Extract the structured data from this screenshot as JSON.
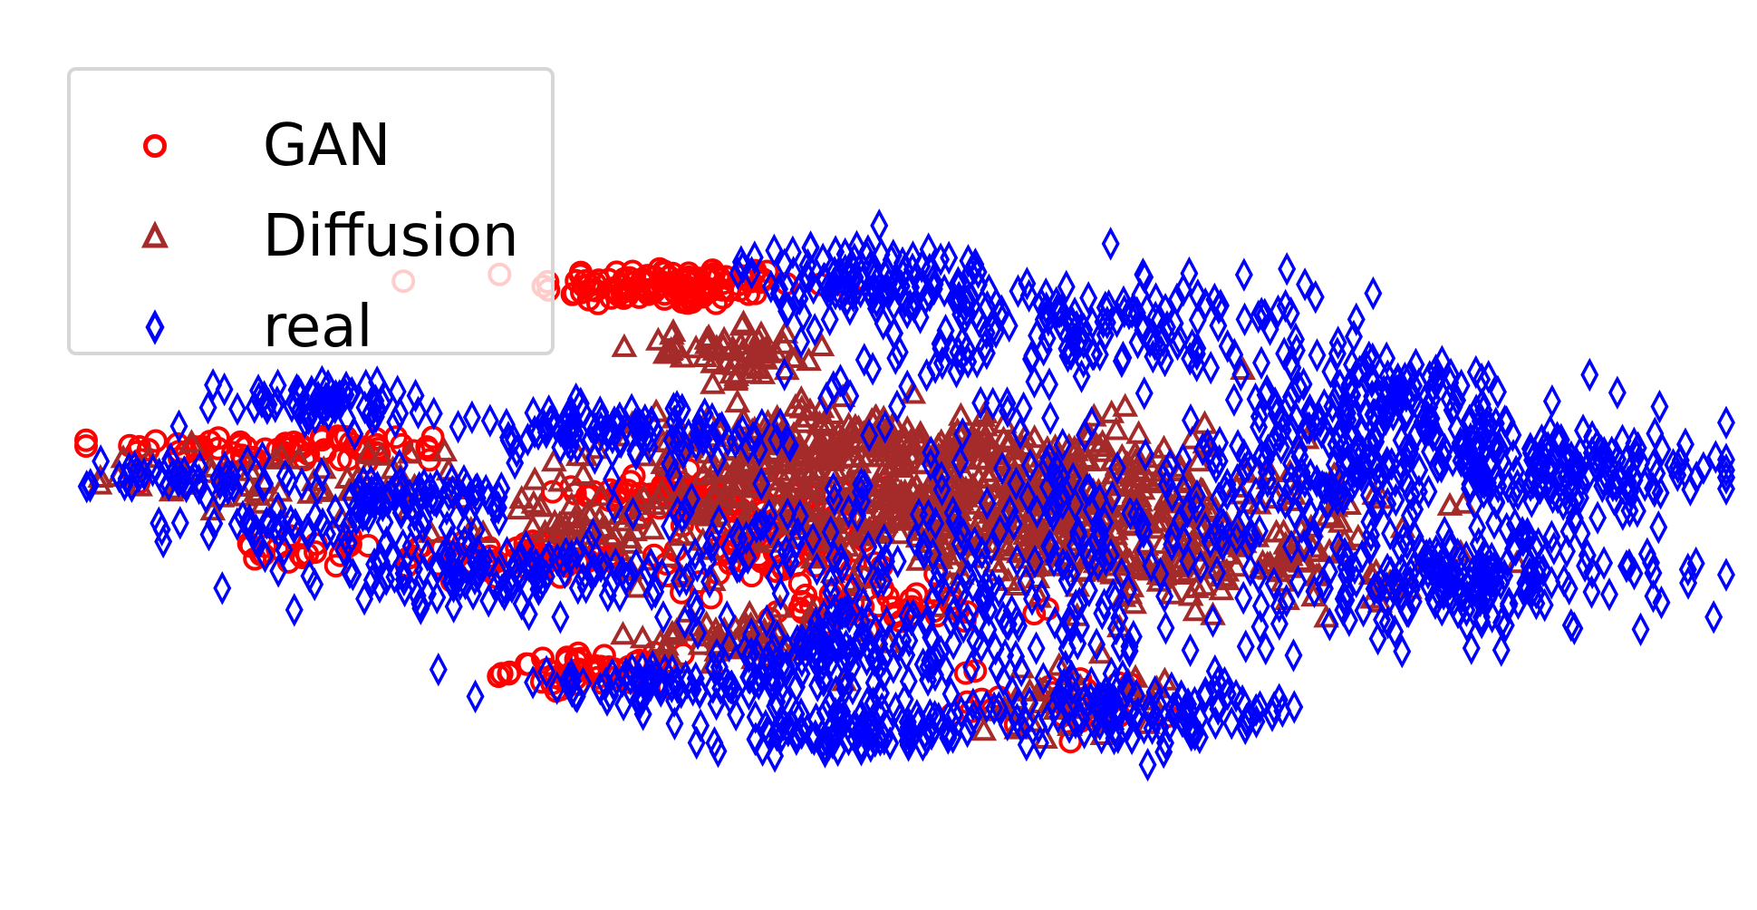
{
  "chart_data": {
    "type": "scatter",
    "title": "",
    "xlabel": "",
    "ylabel": "",
    "axes_visible": false,
    "grid": false,
    "legend_placement": "top-left",
    "xlim": [
      0,
      100
    ],
    "ylim": [
      0,
      100
    ],
    "series": [
      {
        "name": "GAN",
        "marker": "circle-open",
        "color": "#ff0000",
        "clusters": [
          {
            "cx": 35.5,
            "cy": 84.0,
            "sx": 4.0,
            "sy": 1.6,
            "n": 120
          },
          {
            "cx": 12.5,
            "cy": 58.0,
            "sx": 6.0,
            "sy": 1.3,
            "n": 70
          },
          {
            "cx": 27.0,
            "cy": 40.5,
            "sx": 3.0,
            "sy": 1.6,
            "n": 60
          },
          {
            "cx": 36.0,
            "cy": 51.0,
            "sx": 3.0,
            "sy": 1.8,
            "n": 70
          },
          {
            "cx": 42.0,
            "cy": 43.0,
            "sx": 3.5,
            "sy": 4.5,
            "n": 100
          },
          {
            "cx": 31.0,
            "cy": 22.5,
            "sx": 2.5,
            "sy": 1.3,
            "n": 50
          },
          {
            "cx": 49.0,
            "cy": 32.0,
            "sx": 5.0,
            "sy": 1.8,
            "n": 40
          },
          {
            "cx": 60.0,
            "cy": 18.0,
            "sx": 3.5,
            "sy": 2.5,
            "n": 30
          },
          {
            "cx": 14.0,
            "cy": 41.5,
            "sx": 3.0,
            "sy": 1.2,
            "n": 25
          }
        ]
      },
      {
        "name": "Diffusion",
        "marker": "triangle-open",
        "color": "#a52a2a",
        "clusters": [
          {
            "cx": 54.0,
            "cy": 50.0,
            "sx": 10.0,
            "sy": 6.0,
            "n": 650
          },
          {
            "cx": 45.0,
            "cy": 59.0,
            "sx": 5.0,
            "sy": 3.0,
            "n": 150
          },
          {
            "cx": 39.5,
            "cy": 73.0,
            "sx": 3.0,
            "sy": 2.0,
            "n": 60
          },
          {
            "cx": 40.0,
            "cy": 28.0,
            "sx": 3.0,
            "sy": 2.5,
            "n": 60
          },
          {
            "cx": 70.0,
            "cy": 40.0,
            "sx": 6.0,
            "sy": 4.0,
            "n": 120
          },
          {
            "cx": 12.0,
            "cy": 53.0,
            "sx": 6.0,
            "sy": 2.5,
            "n": 60
          },
          {
            "cx": 60.0,
            "cy": 18.0,
            "sx": 3.0,
            "sy": 3.0,
            "n": 40
          },
          {
            "cx": 30.0,
            "cy": 45.0,
            "sx": 3.0,
            "sy": 2.0,
            "n": 30
          }
        ]
      },
      {
        "name": "real",
        "marker": "diamond-open",
        "color": "#0000ff",
        "clusters": [
          {
            "cx": 48.0,
            "cy": 85.0,
            "sx": 4.0,
            "sy": 3.0,
            "n": 120
          },
          {
            "cx": 57.0,
            "cy": 76.0,
            "sx": 3.0,
            "sy": 6.0,
            "n": 60
          },
          {
            "cx": 67.0,
            "cy": 77.0,
            "sx": 4.0,
            "sy": 5.0,
            "n": 80
          },
          {
            "cx": 79.5,
            "cy": 64.0,
            "sx": 5.0,
            "sy": 5.0,
            "n": 180
          },
          {
            "cx": 88.0,
            "cy": 54.5,
            "sx": 6.0,
            "sy": 3.5,
            "n": 140
          },
          {
            "cx": 84.0,
            "cy": 37.0,
            "sx": 6.0,
            "sy": 4.5,
            "n": 200
          },
          {
            "cx": 66.0,
            "cy": 46.0,
            "sx": 9.0,
            "sy": 8.0,
            "n": 120
          },
          {
            "cx": 54.0,
            "cy": 30.0,
            "sx": 8.0,
            "sy": 7.0,
            "n": 120
          },
          {
            "cx": 45.0,
            "cy": 25.0,
            "sx": 3.0,
            "sy": 2.5,
            "n": 80
          },
          {
            "cx": 35.0,
            "cy": 20.0,
            "sx": 4.5,
            "sy": 1.6,
            "n": 90
          },
          {
            "cx": 46.5,
            "cy": 12.5,
            "sx": 4.0,
            "sy": 1.6,
            "n": 100
          },
          {
            "cx": 63.5,
            "cy": 16.0,
            "sx": 6.0,
            "sy": 2.5,
            "n": 130
          },
          {
            "cx": 25.0,
            "cy": 38.0,
            "sx": 5.0,
            "sy": 2.5,
            "n": 130
          },
          {
            "cx": 20.0,
            "cy": 50.0,
            "sx": 3.0,
            "sy": 2.0,
            "n": 70
          },
          {
            "cx": 12.0,
            "cy": 45.5,
            "sx": 3.0,
            "sy": 1.5,
            "n": 40
          },
          {
            "cx": 14.0,
            "cy": 65.5,
            "sx": 3.5,
            "sy": 1.6,
            "n": 70
          },
          {
            "cx": 6.5,
            "cy": 53.5,
            "sx": 3.0,
            "sy": 1.8,
            "n": 50
          },
          {
            "cx": 30.0,
            "cy": 61.0,
            "sx": 3.0,
            "sy": 2.0,
            "n": 60
          },
          {
            "cx": 37.0,
            "cy": 60.0,
            "sx": 3.5,
            "sy": 2.5,
            "n": 50
          },
          {
            "cx": 41.0,
            "cy": 42.0,
            "sx": 4.0,
            "sy": 6.0,
            "n": 60
          },
          {
            "cx": 56.0,
            "cy": 48.0,
            "sx": 6.0,
            "sy": 5.0,
            "n": 40
          },
          {
            "cx": 50.0,
            "cy": 70.0,
            "sx": 6.0,
            "sy": 5.0,
            "n": 30
          },
          {
            "cx": 75.0,
            "cy": 52.0,
            "sx": 4.0,
            "sy": 5.0,
            "n": 40
          },
          {
            "cx": 94.0,
            "cy": 55.0,
            "sx": 3.0,
            "sy": 3.0,
            "n": 30
          }
        ]
      }
    ]
  }
}
